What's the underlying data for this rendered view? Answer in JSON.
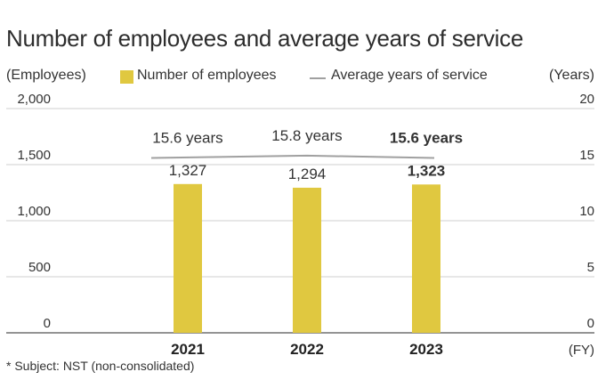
{
  "chart_data": {
    "type": "bar",
    "title": "Number of employees and average years of service",
    "categories": [
      "2021",
      "2022",
      "2023"
    ],
    "series": [
      {
        "name": "Number of employees",
        "type": "bar",
        "axis": "left",
        "values": [
          1327,
          1294,
          1323
        ],
        "labels": [
          "1,327",
          "1,294",
          "1,323"
        ],
        "color": "#e0c840"
      },
      {
        "name": "Average years of service",
        "type": "line",
        "axis": "right",
        "values": [
          15.6,
          15.8,
          15.6
        ],
        "labels": [
          "15.6 years",
          "15.8 years",
          "15.6 years"
        ],
        "color": "#a0a0a0"
      }
    ],
    "ylabel_left": "(Employees)",
    "ylabel_right": "(Years)",
    "xlabel": "(FY)",
    "ylim_left": [
      0,
      2000
    ],
    "ylim_right": [
      0,
      20
    ],
    "yticks_left": [
      "0",
      "500",
      "1,000",
      "1,500",
      "2,000"
    ],
    "yticks_right": [
      "0",
      "5",
      "10",
      "15",
      "20"
    ],
    "grid": true,
    "legend": "top"
  },
  "footnote": "* Subject: NST (non-consolidated)"
}
